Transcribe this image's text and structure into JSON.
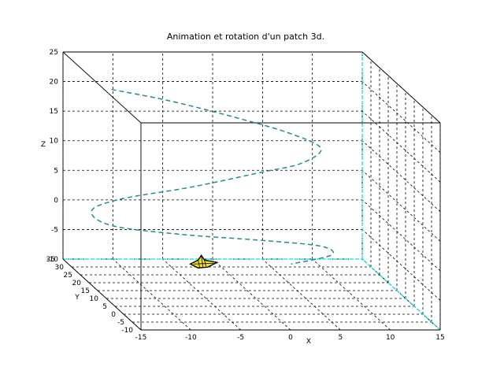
{
  "chart_data": {
    "type": "line",
    "projection": "3d",
    "title": "Animation et rotation d'un patch 3d.",
    "xlabel": "X",
    "ylabel": "Y",
    "zlabel": "Z",
    "xlim": [
      -15,
      15
    ],
    "ylim": [
      -10,
      35
    ],
    "zlim": [
      -10,
      25
    ],
    "x_ticks": [
      "-15",
      "-10",
      "-5",
      "0",
      "5",
      "10",
      "15"
    ],
    "y_ticks": [
      "-10",
      "-5",
      "0",
      "5",
      "10",
      "15",
      "20",
      "25",
      "30",
      "35"
    ],
    "z_ticks": [
      "-10",
      "-5",
      "0",
      "5",
      "10",
      "15",
      "20",
      "25"
    ],
    "grid": true,
    "series": [
      {
        "style": "dashed",
        "color": "#2a8a8a",
        "x": [
          -11,
          -5,
          2,
          7,
          10,
          8,
          4,
          -3,
          -10,
          -13,
          -11,
          -4,
          4,
          10,
          11,
          7
        ],
        "y": [
          30,
          30,
          30,
          30,
          30,
          30,
          30,
          30,
          30,
          30,
          30,
          30,
          30,
          30,
          30,
          30
        ],
        "z": [
          20,
          18,
          15,
          12.5,
          10,
          7.5,
          6,
          3.5,
          1.5,
          -0.5,
          -3,
          -4.5,
          -5.5,
          -6.5,
          -8,
          -9.5
        ]
      }
    ],
    "patch": {
      "x": -2,
      "y": 30,
      "z": -9.5,
      "color": "#f0e020"
    },
    "highlight_color": "#00e0e0"
  }
}
